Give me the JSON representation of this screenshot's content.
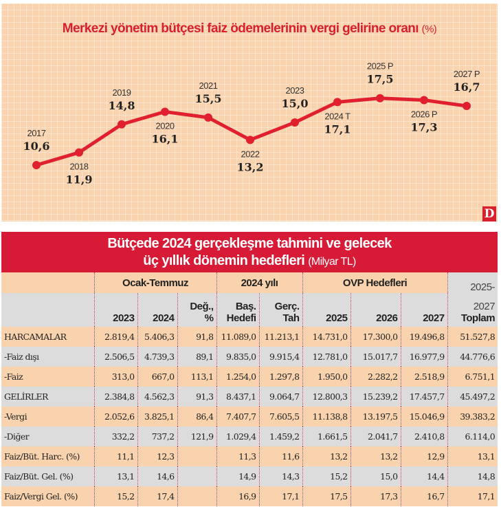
{
  "chart_data": {
    "type": "line",
    "title": "Merkezi yönetim bütçesi faiz ödemelerinin vergi gelirine oranı",
    "unit": "(%)",
    "categories": [
      "2017",
      "2018",
      "2019",
      "2020",
      "2021",
      "2022",
      "2023",
      "2024 T",
      "2025 P",
      "2026 P",
      "2027 P"
    ],
    "values": [
      10.6,
      11.9,
      14.8,
      16.1,
      15.5,
      13.2,
      15.0,
      17.1,
      17.5,
      17.3,
      16.7
    ],
    "labels": [
      "10,6",
      "11,9",
      "14,8",
      "16,1",
      "15,5",
      "13,2",
      "15,0",
      "17,1",
      "17,5",
      "17,3",
      "16,7"
    ],
    "color": "#e0202e",
    "grid": false,
    "logo": "D"
  },
  "table": {
    "title_line1": "Bütçede 2024 gerçekleşme tahmini ve gelecek",
    "title_line2": "üç yıllık dönemin hedefleri",
    "unit": "(Milyar TL)",
    "groups": [
      "Ocak-Temmuz",
      "2024 yılı",
      "OVP Hedefleri"
    ],
    "total_top": "2025-",
    "total_mid": "2027",
    "columns": [
      "2023",
      "2024",
      "Değ.,",
      "%",
      "Baş.",
      "Hedefi",
      "Gerç.",
      "Tah",
      "2025",
      "2026",
      "2027",
      "Toplam"
    ],
    "rows": [
      [
        "HARCAMALAR",
        "2.819,4",
        "5.406,3",
        "91,8",
        "11.089,0",
        "11.213,1",
        "14.731,0",
        "17.300,0",
        "19.496,8",
        "51.527,8"
      ],
      [
        "-Faiz dışı",
        "2.506,5",
        "4.739,3",
        "89,1",
        "9.835,0",
        "9.915,4",
        "12.781,0",
        "15.017,7",
        "16.977,9",
        "44.776,6"
      ],
      [
        "-Faiz",
        "313,0",
        "667,0",
        "113,1",
        "1.254,0",
        "1.297,8",
        "1.950,0",
        "2.282,2",
        "2.518,9",
        "6.751,1"
      ],
      [
        "GELİRLER",
        "2.384,8",
        "4.562,3",
        "91,3",
        "8.437,1",
        "9.064,7",
        "12.800,3",
        "15.239,2",
        "17.457,7",
        "45.497,2"
      ],
      [
        "-Vergi",
        "2.052,6",
        "3.825,1",
        "86,4",
        "7.407,7",
        "7.605,5",
        "11.138,8",
        "13.197,5",
        "15.046,9",
        "39.383,2"
      ],
      [
        "-Diğer",
        "332,2",
        "737,2",
        "121,9",
        "1.029,4",
        "1.459,2",
        "1.661,5",
        "2.041,7",
        "2.410,8",
        "6.114,0"
      ],
      [
        "Faiz/Büt. Harc. (%)",
        "11,1",
        "12,3",
        "",
        "11,3",
        "11,6",
        "13,2",
        "13,2",
        "12,9",
        "13,1"
      ],
      [
        "Faiz/Büt. Gel. (%)",
        "13,1",
        "14,6",
        "",
        "14,9",
        "14,3",
        "15,2",
        "15,0",
        "14,4",
        "14,8"
      ],
      [
        "Faiz/Vergi Gel. (%)",
        "15,2",
        "17,4",
        "",
        "16,9",
        "17,1",
        "17,5",
        "17,3",
        "16,7",
        "17,1"
      ]
    ]
  }
}
